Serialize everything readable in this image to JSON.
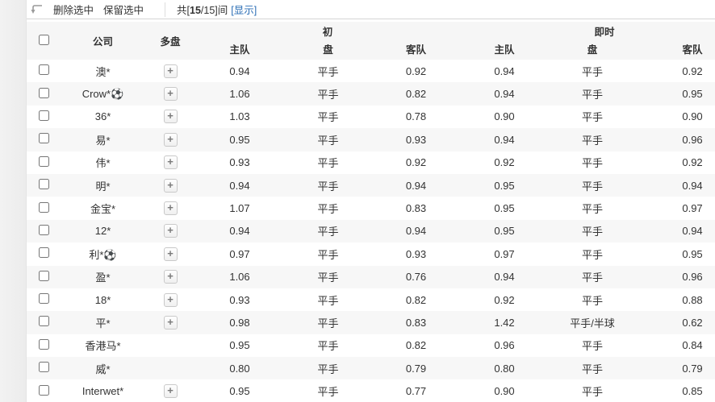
{
  "toolbar": {
    "delete_selected": "删除选中",
    "keep_selected": "保留选中",
    "count_prefix": "共[",
    "count_bold": "15",
    "count_suffix": "/15]间",
    "show_link": "[显示]"
  },
  "icons": {
    "return_arrow": "return-arrow",
    "plus": "+"
  },
  "colors": {
    "link_blue": "#2a6db5",
    "header_bg": "#f6f6f6",
    "row_alt_bg": "#f7f7f7",
    "toolbar_border": "#d5d5d5"
  },
  "table": {
    "headers": {
      "company": "公司",
      "multi": "多盘",
      "initial_group": "初",
      "live_group": "即时",
      "home": "主队",
      "handicap": "盘",
      "away": "客队"
    },
    "rows": [
      {
        "company": "澳*",
        "has_plus": true,
        "init_home": "0.94",
        "init_handicap": "平手",
        "init_away": "0.92",
        "live_home": "0.94",
        "live_handicap": "平手",
        "live_away": "0.92"
      },
      {
        "company": "Crow*⚽",
        "has_plus": true,
        "init_home": "1.06",
        "init_handicap": "平手",
        "init_away": "0.82",
        "live_home": "0.94",
        "live_handicap": "平手",
        "live_away": "0.95"
      },
      {
        "company": "36*",
        "has_plus": true,
        "init_home": "1.03",
        "init_handicap": "平手",
        "init_away": "0.78",
        "live_home": "0.90",
        "live_handicap": "平手",
        "live_away": "0.90"
      },
      {
        "company": "易*",
        "has_plus": true,
        "init_home": "0.95",
        "init_handicap": "平手",
        "init_away": "0.93",
        "live_home": "0.94",
        "live_handicap": "平手",
        "live_away": "0.96"
      },
      {
        "company": "伟*",
        "has_plus": true,
        "init_home": "0.93",
        "init_handicap": "平手",
        "init_away": "0.92",
        "live_home": "0.92",
        "live_handicap": "平手",
        "live_away": "0.92"
      },
      {
        "company": "明*",
        "has_plus": true,
        "init_home": "0.94",
        "init_handicap": "平手",
        "init_away": "0.94",
        "live_home": "0.95",
        "live_handicap": "平手",
        "live_away": "0.94"
      },
      {
        "company": "金宝*",
        "has_plus": true,
        "init_home": "1.07",
        "init_handicap": "平手",
        "init_away": "0.83",
        "live_home": "0.95",
        "live_handicap": "平手",
        "live_away": "0.97"
      },
      {
        "company": "12*",
        "has_plus": true,
        "init_home": "0.94",
        "init_handicap": "平手",
        "init_away": "0.94",
        "live_home": "0.95",
        "live_handicap": "平手",
        "live_away": "0.94"
      },
      {
        "company": "利*⚽",
        "has_plus": true,
        "init_home": "0.97",
        "init_handicap": "平手",
        "init_away": "0.93",
        "live_home": "0.97",
        "live_handicap": "平手",
        "live_away": "0.95"
      },
      {
        "company": "盈*",
        "has_plus": true,
        "init_home": "1.06",
        "init_handicap": "平手",
        "init_away": "0.76",
        "live_home": "0.94",
        "live_handicap": "平手",
        "live_away": "0.96"
      },
      {
        "company": "18*",
        "has_plus": true,
        "init_home": "0.93",
        "init_handicap": "平手",
        "init_away": "0.82",
        "live_home": "0.92",
        "live_handicap": "平手",
        "live_away": "0.88"
      },
      {
        "company": "平*",
        "has_plus": true,
        "init_home": "0.98",
        "init_handicap": "平手",
        "init_away": "0.83",
        "live_home": "1.42",
        "live_handicap": "平手/半球",
        "live_away": "0.62"
      },
      {
        "company": "香港马*",
        "has_plus": false,
        "init_home": "0.95",
        "init_handicap": "平手",
        "init_away": "0.82",
        "live_home": "0.96",
        "live_handicap": "平手",
        "live_away": "0.84"
      },
      {
        "company": "威*",
        "has_plus": false,
        "init_home": "0.80",
        "init_handicap": "平手",
        "init_away": "0.79",
        "live_home": "0.80",
        "live_handicap": "平手",
        "live_away": "0.79"
      },
      {
        "company": "Interwet*",
        "has_plus": true,
        "init_home": "0.95",
        "init_handicap": "平手",
        "init_away": "0.77",
        "live_home": "0.90",
        "live_handicap": "平手",
        "live_away": "0.85"
      }
    ]
  }
}
